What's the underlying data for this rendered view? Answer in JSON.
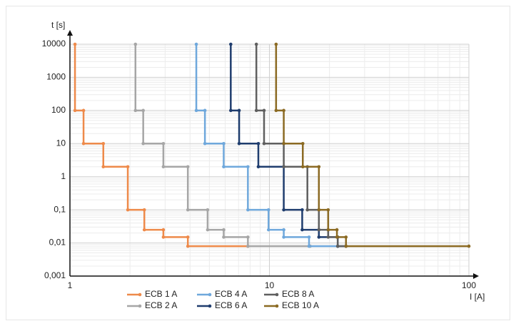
{
  "chart_data": {
    "type": "step-line",
    "xlabel": "I [A]",
    "ylabel": "t [s]",
    "xscale": "log",
    "yscale": "log",
    "grid": true,
    "xlim": [
      1,
      100
    ],
    "xticks": [
      1,
      10,
      100
    ],
    "ylim": [
      0.001,
      10000
    ],
    "yticks": [
      {
        "value": 0.001,
        "label": "0,001"
      },
      {
        "value": 0.01,
        "label": "0,01"
      },
      {
        "value": 0.1,
        "label": "0,1"
      },
      1,
      10,
      100,
      1000,
      10000
    ],
    "legend": "bottom",
    "series": [
      {
        "name": "ECB 1 A",
        "color": "#ee8a4a",
        "x": [
          1.06,
          1.06,
          1.17,
          1.17,
          1.47,
          1.47,
          1.95,
          1.95,
          2.36,
          2.36,
          2.94,
          2.94,
          3.9,
          3.9,
          7.8
        ],
        "values": [
          10000,
          100,
          100,
          10,
          10,
          2,
          2,
          0.1,
          0.1,
          0.025,
          0.025,
          0.015,
          0.015,
          0.008,
          0.008
        ]
      },
      {
        "name": "ECB 2 A",
        "color": "#a6a6a6",
        "x": [
          2.13,
          2.13,
          2.33,
          2.33,
          2.94,
          2.94,
          3.9,
          3.9,
          4.9,
          4.9,
          5.9,
          5.9,
          7.8,
          7.8,
          16
        ],
        "values": [
          10000,
          100,
          100,
          10,
          10,
          2,
          2,
          0.1,
          0.1,
          0.025,
          0.025,
          0.015,
          0.015,
          0.008,
          0.008
        ]
      },
      {
        "name": "ECB 4 A",
        "color": "#6fa8dc",
        "x": [
          4.3,
          4.3,
          4.75,
          4.75,
          5.9,
          5.9,
          7.8,
          7.8,
          9.9,
          9.9,
          11.8,
          11.8,
          15.8,
          15.8,
          22
        ],
        "values": [
          10000,
          100,
          100,
          10,
          10,
          2,
          2,
          0.1,
          0.1,
          0.025,
          0.025,
          0.015,
          0.015,
          0.008,
          0.008
        ]
      },
      {
        "name": "ECB 6 A",
        "color": "#1f3d6e",
        "x": [
          6.4,
          6.4,
          7.05,
          7.05,
          8.8,
          8.8,
          11.8,
          11.8,
          14.6,
          14.6,
          17.7,
          17.7,
          22,
          22,
          24.2
        ],
        "values": [
          10000,
          100,
          100,
          10,
          10,
          2,
          2,
          0.1,
          0.1,
          0.025,
          0.025,
          0.015,
          0.015,
          0.008,
          0.008
        ]
      },
      {
        "name": "ECB 8 A",
        "color": "#5f5f5f",
        "x": [
          8.6,
          8.6,
          9.4,
          9.4,
          11.8,
          11.8,
          15.5,
          15.5,
          17.7,
          17.7,
          19.7,
          19.7,
          22,
          22,
          24.2
        ],
        "values": [
          10000,
          100,
          100,
          10,
          10,
          2,
          2,
          0.1,
          0.1,
          0.025,
          0.025,
          0.015,
          0.015,
          0.008,
          0.008
        ]
      },
      {
        "name": "ECB 10 A",
        "color": "#8b6a23",
        "x": [
          10.8,
          10.8,
          11.8,
          11.8,
          14.7,
          14.7,
          17.7,
          17.7,
          19.7,
          19.7,
          21.8,
          21.8,
          24.2,
          24.2,
          100
        ],
        "values": [
          10000,
          100,
          100,
          10,
          10,
          2,
          2,
          0.1,
          0.1,
          0.025,
          0.025,
          0.015,
          0.015,
          0.008,
          0.008
        ]
      }
    ]
  }
}
